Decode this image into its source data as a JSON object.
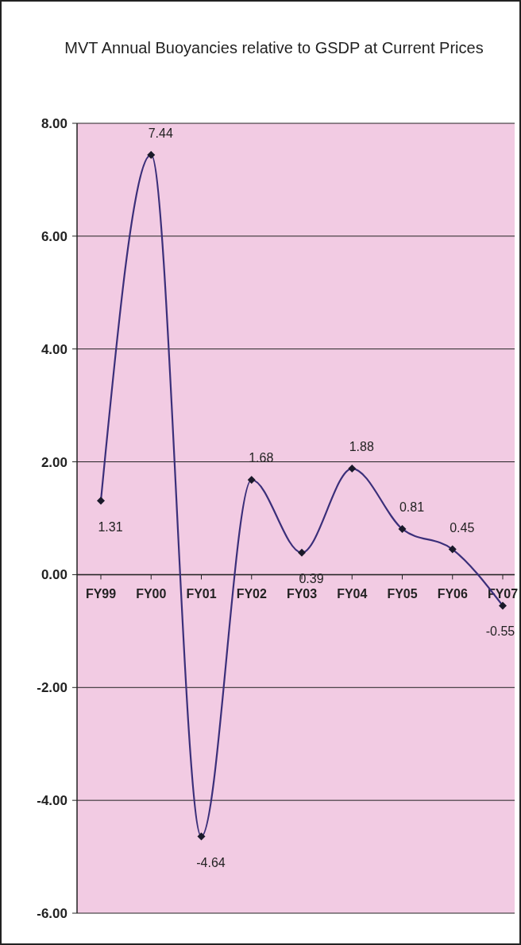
{
  "chart_data": {
    "type": "line",
    "title": "MVT Annual Buoyancies relative to GSDP at Current Prices",
    "categories": [
      "FY99",
      "FY00",
      "FY01",
      "FY02",
      "FY03",
      "FY04",
      "FY05",
      "FY06",
      "FY07"
    ],
    "series": [
      {
        "color": "#3b2f7a",
        "values": [
          1.31,
          7.44,
          -4.64,
          1.68,
          0.39,
          1.88,
          0.81,
          0.45,
          -0.55
        ]
      }
    ],
    "ylim": [
      -6,
      8
    ],
    "yticks": [
      {
        "value": -6,
        "label": "-6.00"
      },
      {
        "value": -4,
        "label": "-4.00"
      },
      {
        "value": -2,
        "label": "-2.00"
      },
      {
        "value": 0,
        "label": "0.00"
      },
      {
        "value": 2,
        "label": "2.00"
      },
      {
        "value": 4,
        "label": "4.00"
      },
      {
        "value": 6,
        "label": "6.00"
      },
      {
        "value": 8,
        "label": "8.00"
      }
    ],
    "grid": "y",
    "marker": "diamond",
    "line_style": "solid",
    "data_labels": true
  }
}
